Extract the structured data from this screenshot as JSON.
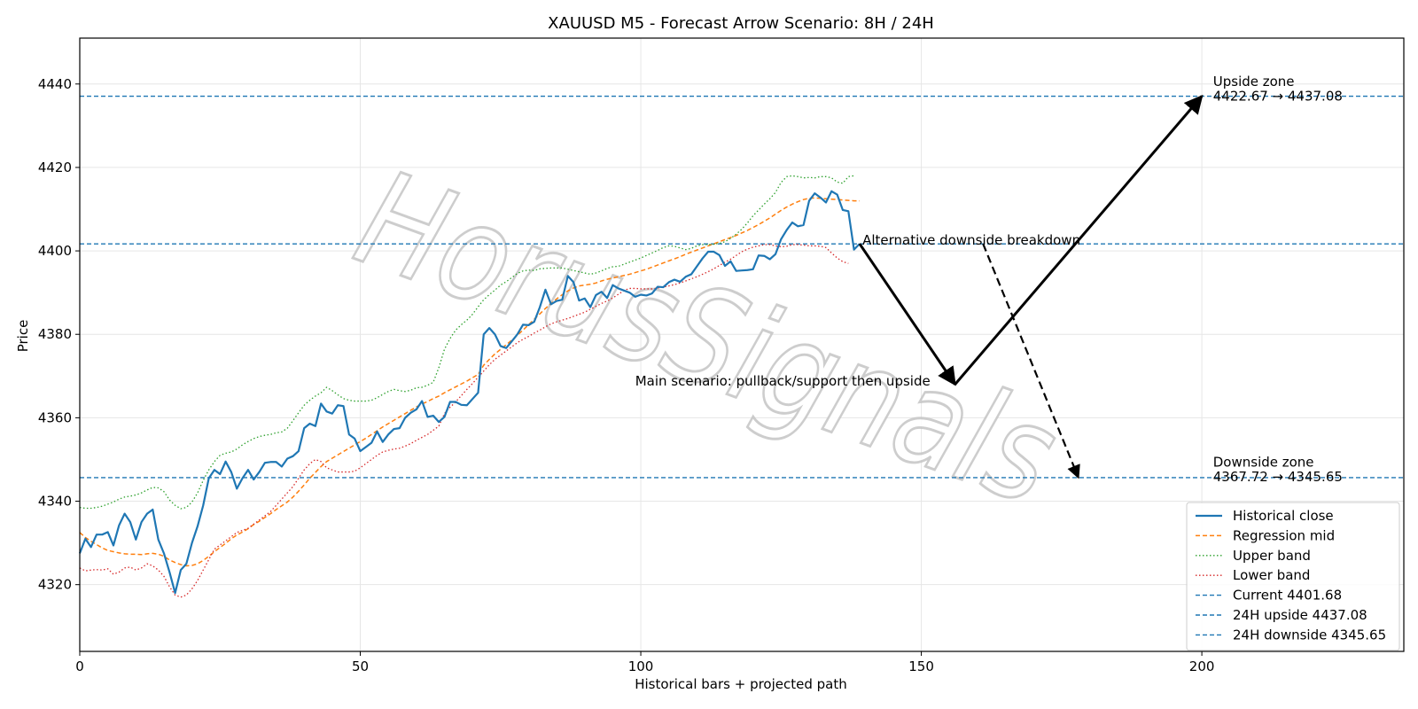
{
  "chart_data": {
    "type": "line",
    "title": "XAUUSD M5 - Forecast Arrow Scenario: 8H / 24H",
    "xlabel": "Historical bars + projected path",
    "ylabel": "Price",
    "xlim": [
      0,
      236
    ],
    "ylim": [
      4304,
      4451
    ],
    "x_ticks": [
      0,
      50,
      100,
      150,
      200
    ],
    "y_ticks": [
      4320,
      4340,
      4360,
      4380,
      4400,
      4420,
      4440
    ],
    "grid": true,
    "legend_position": "lower-right",
    "watermark": "HorusSignals",
    "colors": {
      "close": "#1f77b4",
      "mid": "#ff7f0e",
      "upper": "#2ca02c",
      "lower": "#d62728",
      "hline": "#1f77b4",
      "arrow": "#000000"
    },
    "series": [
      {
        "name": "Historical close",
        "style": "solid",
        "values": [
          4327.5,
          4331,
          4329,
          4332,
          4332,
          4332.6,
          4329.4,
          4334.2,
          4337,
          4335,
          4330.8,
          4335,
          4337,
          4338,
          4330.8,
          4327.5,
          4323,
          4318,
          4323.5,
          4325,
          4330,
          4334,
          4339,
          4345.5,
          4347.5,
          4346.5,
          4349.5,
          4347,
          4343,
          4345.5,
          4347.5,
          4345.2,
          4347,
          4349.2,
          4349.4,
          4349.4,
          4348.3,
          4350.2,
          4350.8,
          4352,
          4357.5,
          4358.6,
          4358,
          4363.4,
          4361.5,
          4361,
          4363,
          4362.8,
          4356,
          4355,
          4352,
          4353,
          4354,
          4356.7,
          4354.2,
          4356,
          4357.3,
          4357.5,
          4360,
          4361.2,
          4362,
          4364,
          4360.2,
          4360.5,
          4359,
          4360.2,
          4363.8,
          4363.8,
          4363.1,
          4363,
          4364.5,
          4366,
          4380,
          4381.5,
          4380,
          4377.2,
          4376.7,
          4378.3,
          4380,
          4382.3,
          4382.2,
          4383,
          4386.5,
          4390.7,
          4387.2,
          4388,
          4388.3,
          4394,
          4392.5,
          4388.1,
          4388.6,
          4386.5,
          4389.4,
          4390.2,
          4388.7,
          4391.8,
          4391,
          4390.5,
          4390,
          4389,
          4389.5,
          4389.3,
          4389.8,
          4391.4,
          4391.3,
          4392.5,
          4393.1,
          4392.6,
          4393.8,
          4394.4,
          4396.3,
          4398.2,
          4399.8,
          4399.8,
          4399,
          4396.4,
          4397.5,
          4395.2,
          4395.3,
          4395.4,
          4395.6,
          4398.9,
          4398.8,
          4398,
          4399.2,
          4402.8,
          4405,
          4406.8,
          4405.9,
          4406.2,
          4412,
          4413.8,
          4412.8,
          4411.6,
          4414.3,
          4413.5,
          4409.8,
          4409.5,
          4400.3,
          4401.7
        ]
      },
      {
        "name": "Regression mid",
        "style": "dashed",
        "values": [
          4332.5,
          4331.3,
          4330.4,
          4329.6,
          4328.8,
          4328.2,
          4327.9,
          4327.6,
          4327.4,
          4327.3,
          4327.3,
          4327.2,
          4327.4,
          4327.5,
          4327.3,
          4326.8,
          4325.9,
          4325.3,
          4324.8,
          4324.5,
          4324.6,
          4325,
          4325.8,
          4326.8,
          4327.9,
          4328.9,
          4329.9,
          4331,
          4331.9,
          4332.6,
          4333.4,
          4334.4,
          4335.2,
          4336.1,
          4337,
          4338,
          4338.9,
          4339.8,
          4341,
          4342.4,
          4343.9,
          4345.5,
          4346.9,
          4348.3,
          4349.5,
          4350.3,
          4351.1,
          4351.9,
          4352.7,
          4353.5,
          4354.3,
          4355.1,
          4356,
          4356.9,
          4357.8,
          4358.6,
          4359.4,
          4360.2,
          4361,
          4361.8,
          4362.6,
          4363.3,
          4363.9,
          4364.6,
          4365.2,
          4366,
          4366.7,
          4367.4,
          4368.1,
          4368.8,
          4369.6,
          4370.4,
          4372.6,
          4374,
          4375.3,
          4376.4,
          4377.5,
          4378.6,
          4379.8,
          4381,
          4382.3,
          4383.6,
          4384.9,
          4386.2,
          4387.4,
          4388.5,
          4389.5,
          4390.4,
          4391.1,
          4391.6,
          4391.8,
          4392,
          4392.3,
          4392.8,
          4393.2,
          4393.5,
          4393.8,
          4394.1,
          4394.4,
          4394.8,
          4395.2,
          4395.6,
          4396.1,
          4396.6,
          4397.1,
          4397.6,
          4398.1,
          4398.6,
          4399.2,
          4399.7,
          4400.2,
          4400.7,
          4401.2,
          4401.7,
          4402.2,
          4402.7,
          4403.2,
          4403.7,
          4404.3,
          4404.9,
          4405.6,
          4406.3,
          4407.1,
          4407.9,
          4408.8,
          4409.7,
          4410.5,
          4411.2,
          4411.8,
          4412.3,
          4412.6,
          4412.7,
          4412.6,
          4412.5,
          4412.4,
          4412.3,
          4412.2,
          4412.1,
          4412,
          4412
        ]
      },
      {
        "name": "Upper band",
        "style": "dotted",
        "values": [
          4338.5,
          4338.3,
          4338.3,
          4338.5,
          4338.8,
          4339.3,
          4339.8,
          4340.5,
          4341,
          4341.2,
          4341.5,
          4342,
          4342.7,
          4343.3,
          4343.2,
          4342.3,
          4340.3,
          4339,
          4338.2,
          4338.5,
          4339.8,
          4342,
          4345,
          4347.5,
          4349.5,
          4351,
          4351.5,
          4351.8,
          4352.5,
          4353.5,
          4354.3,
          4355,
          4355.5,
          4355.8,
          4356,
          4356.4,
          4356.6,
          4357.5,
          4359.3,
          4361.2,
          4363,
          4364.2,
          4365.2,
          4366,
          4367.3,
          4366.5,
          4365.5,
          4364.6,
          4364.2,
          4364,
          4364,
          4364,
          4364.2,
          4364.8,
          4365.6,
          4366.3,
          4366.8,
          4366.5,
          4366.3,
          4366.6,
          4367.2,
          4367.3,
          4367.8,
          4368.5,
          4372,
          4376.4,
          4379,
          4381,
          4382.3,
          4383.4,
          4384.8,
          4386.6,
          4388.3,
          4389.5,
          4390.6,
          4391.8,
          4392.6,
          4393.6,
          4394.6,
          4395.2,
          4395.4,
          4395.3,
          4395.7,
          4395.8,
          4395.9,
          4395.9,
          4395.9,
          4395.6,
          4395.3,
          4395,
          4394.7,
          4394.4,
          4394.7,
          4395.2,
          4395.8,
          4396.2,
          4396.3,
          4396.8,
          4397.3,
          4397.8,
          4398.3,
          4398.9,
          4399.5,
          4400.1,
          4400.8,
          4401.2,
          4401.1,
          4400.7,
          4400.3,
          4400.6,
          4401.2,
          4401.5,
          4401.5,
          4401.6,
          4401.8,
          4402.2,
          4403,
          4404,
          4405.2,
          4406.7,
          4408.4,
          4409.8,
          4411.2,
          4412.5,
          4414,
          4416.4,
          4417.8,
          4418,
          4417.8,
          4417.5,
          4417.6,
          4417.5,
          4417.8,
          4417.8,
          4417.5,
          4416.5,
          4416.2,
          4417.8,
          4418
        ]
      },
      {
        "name": "Lower band",
        "style": "dotted",
        "values": [
          4324,
          4323.3,
          4323.5,
          4323.6,
          4323.5,
          4323.8,
          4322.5,
          4323,
          4324,
          4324.2,
          4323.5,
          4324,
          4325,
          4324.5,
          4323.5,
          4322,
          4319.5,
          4317.5,
          4317,
          4317.5,
          4319,
          4321,
          4323.5,
          4326,
          4328.5,
          4329.5,
          4330.5,
          4331.5,
          4332.5,
          4333,
          4333.5,
          4334.5,
          4335.5,
          4336.5,
          4337.5,
          4339,
          4340.5,
          4342,
          4343.5,
          4345.5,
          4347.5,
          4349,
          4350,
          4349.5,
          4348,
          4347.5,
          4347,
          4347,
          4347,
          4347.2,
          4348,
          4349,
          4350,
          4351,
          4351.8,
          4352.2,
          4352.5,
          4352.7,
          4353.2,
          4353.8,
          4354.6,
          4355.3,
          4356,
          4357,
          4358,
          4361,
          4362.5,
          4363.8,
          4365.3,
          4366.8,
          4368.2,
          4369.7,
          4371.2,
          4372.7,
          4374,
          4375,
          4376,
          4377,
          4378,
          4378.8,
          4379.5,
          4380.3,
          4381,
          4381.8,
          4382.5,
          4383,
          4383.4,
          4383.8,
          4384.3,
          4384.8,
          4385.3,
          4386,
          4386.7,
          4387.4,
          4388,
          4388.7,
          4389.6,
          4390.5,
          4391,
          4391,
          4390.9,
          4390.9,
          4390.9,
          4391.1,
          4391.3,
          4391.6,
          4391.9,
          4392.3,
          4392.8,
          4393.3,
          4393.8,
          4394.4,
          4395,
          4395.7,
          4396.5,
          4397.3,
          4398,
          4398.9,
          4399.8,
          4400.4,
          4400.9,
          4401.2,
          4401.5,
          4401.5,
          4401.2,
          4401,
          4401.1,
          4401.5,
          4401.5,
          4401.4,
          4401.2,
          4401.2,
          4401.1,
          4400.8,
          4399.5,
          4398.3,
          4397.4,
          4397
        ]
      }
    ],
    "hlines": [
      {
        "name": "Current 4401.68",
        "value": 4401.68
      },
      {
        "name": "24H upside 4437.08",
        "value": 4437.08
      },
      {
        "name": "24H downside 4345.65",
        "value": 4345.65
      }
    ],
    "arrows": [
      {
        "style": "solid",
        "from": [
          139,
          4401.7
        ],
        "to": [
          156,
          4368
        ]
      },
      {
        "style": "solid",
        "from": [
          156,
          4368
        ],
        "to": [
          200,
          4437.08
        ]
      },
      {
        "style": "dashed",
        "from": [
          161,
          4401.7
        ],
        "to": [
          178,
          4345.65
        ]
      }
    ],
    "annotations": [
      {
        "id": "main",
        "text": "Main scenario: pullback/support then upside",
        "x": 99,
        "y": 4367.7
      },
      {
        "id": "alt",
        "text": "Alternative downside breakdown",
        "x": 139.5,
        "y": 4401.5
      },
      {
        "id": "up1",
        "text": "Upside zone",
        "x": 202,
        "y": 4439.5
      },
      {
        "id": "up2",
        "text": "4422.67 → 4437.08",
        "x": 202,
        "y": 4436
      },
      {
        "id": "dn1",
        "text": "Downside zone",
        "x": 202,
        "y": 4348.3
      },
      {
        "id": "dn2",
        "text": "4367.72 → 4345.65",
        "x": 202,
        "y": 4344.8
      }
    ]
  }
}
